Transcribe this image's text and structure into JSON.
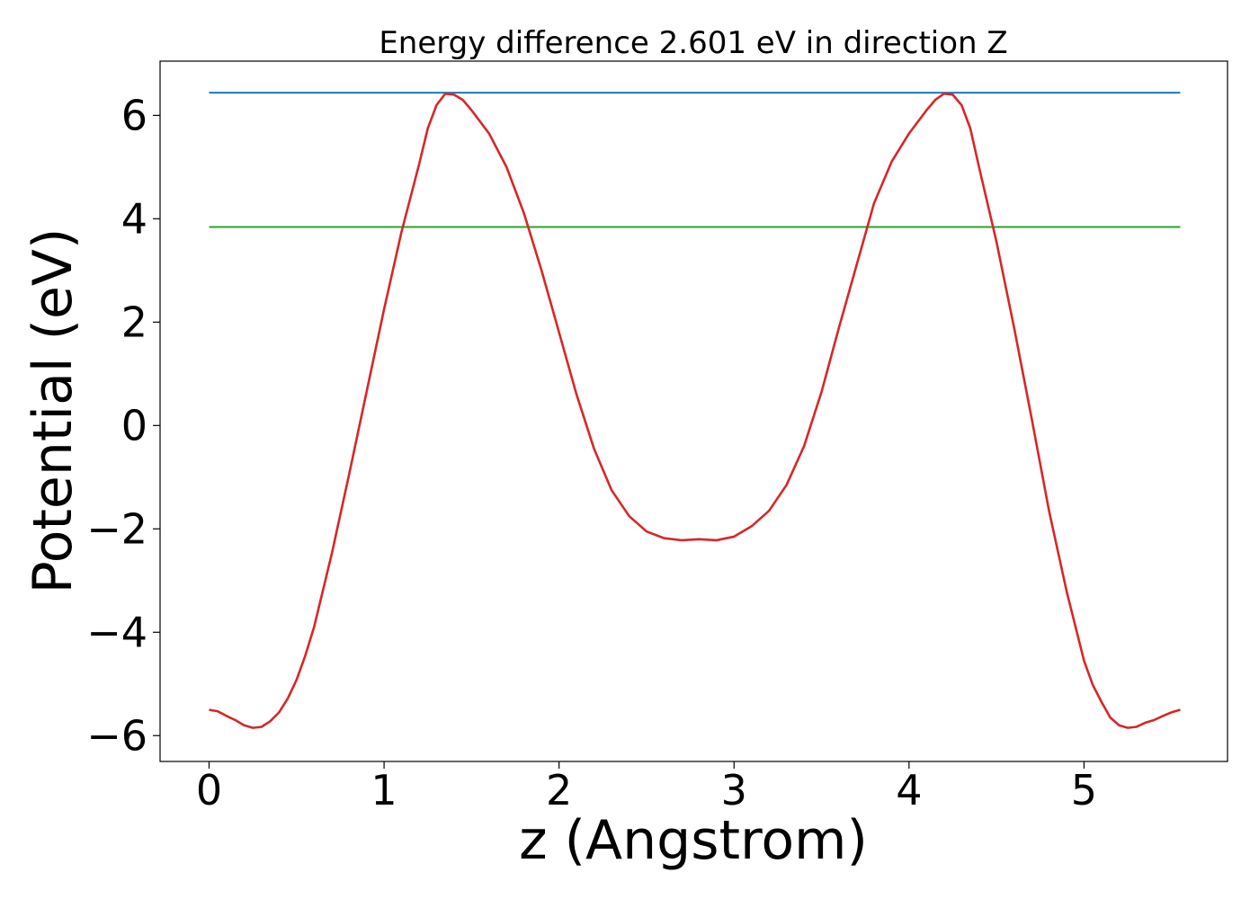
{
  "chart_data": {
    "type": "line",
    "title": "Energy difference 2.601 eV in direction Z",
    "xlabel": "z (Angstrom)",
    "ylabel": "Potential (eV)",
    "xlim": [
      -0.28,
      5.82
    ],
    "ylim": [
      -6.5,
      7.05
    ],
    "xticks": [
      0,
      1,
      2,
      3,
      4,
      5
    ],
    "xtick_labels": [
      "0",
      "1",
      "2",
      "3",
      "4",
      "5"
    ],
    "yticks": [
      -6,
      -4,
      -2,
      0,
      2,
      4,
      6
    ],
    "ytick_labels": [
      "−6",
      "−4",
      "−2",
      "0",
      "2",
      "4",
      "6"
    ],
    "grid": false,
    "series": [
      {
        "color": "#1f77b4",
        "x": [
          0,
          5.55
        ],
        "y": [
          6.44,
          6.44
        ]
      },
      {
        "color": "#2ca02c",
        "x": [
          0,
          5.55
        ],
        "y": [
          3.84,
          3.84
        ]
      },
      {
        "color": "#d62728",
        "x": [
          0,
          0.05,
          0.1,
          0.15,
          0.2,
          0.25,
          0.3,
          0.35,
          0.4,
          0.45,
          0.5,
          0.55,
          0.6,
          0.7,
          0.8,
          0.9,
          1.0,
          1.1,
          1.2,
          1.25,
          1.3,
          1.35,
          1.4,
          1.45,
          1.5,
          1.6,
          1.7,
          1.8,
          1.9,
          2.0,
          2.1,
          2.2,
          2.3,
          2.4,
          2.5,
          2.6,
          2.7,
          2.8,
          2.9,
          3.0,
          3.1,
          3.2,
          3.3,
          3.4,
          3.5,
          3.6,
          3.7,
          3.8,
          3.9,
          4.0,
          4.1,
          4.15,
          4.2,
          4.25,
          4.3,
          4.35,
          4.4,
          4.5,
          4.6,
          4.7,
          4.8,
          4.9,
          5.0,
          5.05,
          5.1,
          5.15,
          5.2,
          5.25,
          5.3,
          5.35,
          5.4,
          5.45,
          5.5,
          5.55
        ],
        "y": [
          -5.5,
          -5.53,
          -5.62,
          -5.7,
          -5.8,
          -5.85,
          -5.83,
          -5.72,
          -5.55,
          -5.28,
          -4.92,
          -4.45,
          -3.9,
          -2.5,
          -0.95,
          0.65,
          2.25,
          3.75,
          5.05,
          5.75,
          6.2,
          6.42,
          6.4,
          6.3,
          6.1,
          5.65,
          5.0,
          4.1,
          3.0,
          1.8,
          0.6,
          -0.45,
          -1.25,
          -1.75,
          -2.05,
          -2.18,
          -2.22,
          -2.2,
          -2.22,
          -2.15,
          -1.95,
          -1.65,
          -1.15,
          -0.4,
          0.65,
          1.9,
          3.1,
          4.3,
          5.1,
          5.65,
          6.1,
          6.3,
          6.42,
          6.4,
          6.2,
          5.75,
          5.0,
          3.55,
          1.9,
          0.15,
          -1.65,
          -3.2,
          -4.55,
          -5.02,
          -5.35,
          -5.65,
          -5.8,
          -5.85,
          -5.83,
          -5.75,
          -5.7,
          -5.62,
          -5.55,
          -5.5
        ]
      }
    ]
  }
}
